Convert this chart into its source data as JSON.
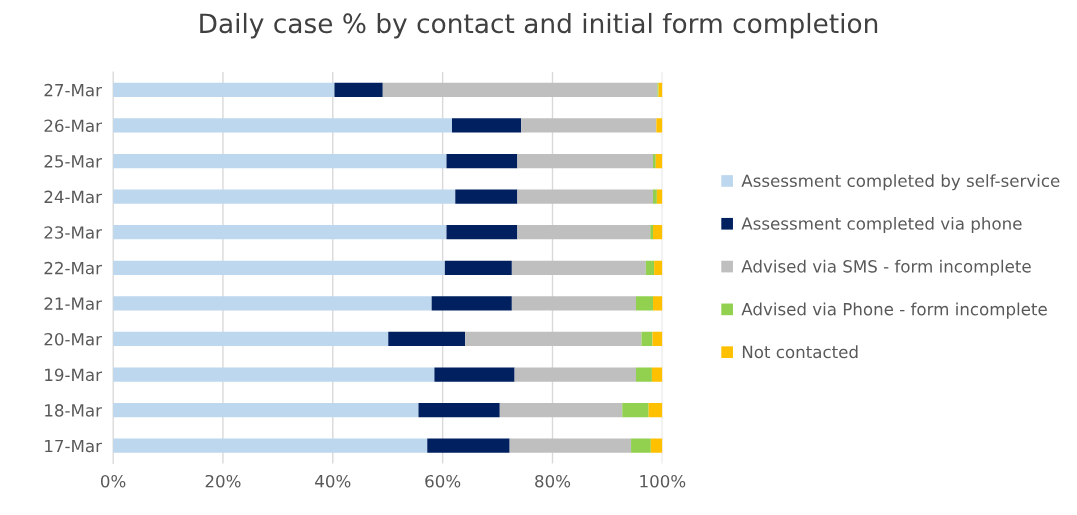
{
  "chart_data": {
    "type": "bar",
    "orientation": "horizontal",
    "stacked": true,
    "title": "Daily case % by contact and initial form completion",
    "categories": [
      "27-Mar",
      "26-Mar",
      "25-Mar",
      "24-Mar",
      "23-Mar",
      "22-Mar",
      "21-Mar",
      "20-Mar",
      "19-Mar",
      "18-Mar",
      "17-Mar"
    ],
    "series": [
      {
        "name": "Assessment completed by self-service",
        "color": "#bdd7ee",
        "values": [
          40.3,
          61.7,
          60.7,
          62.3,
          60.7,
          60.4,
          58.0,
          50.1,
          58.5,
          55.6,
          57.2
        ]
      },
      {
        "name": "Assessment completed via phone",
        "color": "#002060",
        "values": [
          8.8,
          12.6,
          12.9,
          11.3,
          12.9,
          12.2,
          14.6,
          14.0,
          14.6,
          14.8,
          15.0
        ]
      },
      {
        "name": "Advised via SMS - form incomplete",
        "color": "#bfbfbf",
        "values": [
          50.0,
          24.6,
          24.7,
          24.7,
          24.2,
          24.4,
          22.6,
          32.1,
          22.1,
          22.3,
          22.1
        ]
      },
      {
        "name": "Advised via Phone - form incomplete",
        "color": "#92d050",
        "values": [
          0.2,
          0,
          0.5,
          0.7,
          0.5,
          1.5,
          3.1,
          2.0,
          2.9,
          4.8,
          3.6
        ]
      },
      {
        "name": "Not contacted",
        "color": "#ffc000",
        "values": [
          0.7,
          1.1,
          1.2,
          1.0,
          1.7,
          1.5,
          1.7,
          1.8,
          1.9,
          2.5,
          2.1
        ]
      }
    ],
    "xlim": [
      0,
      100
    ],
    "xticks": [
      {
        "value": 0,
        "label": "0%"
      },
      {
        "value": 20,
        "label": "20%"
      },
      {
        "value": 40,
        "label": "40%"
      },
      {
        "value": 60,
        "label": "60%"
      },
      {
        "value": 80,
        "label": "80%"
      },
      {
        "value": 100,
        "label": "100%"
      }
    ],
    "grid": "x",
    "legend": "right"
  }
}
